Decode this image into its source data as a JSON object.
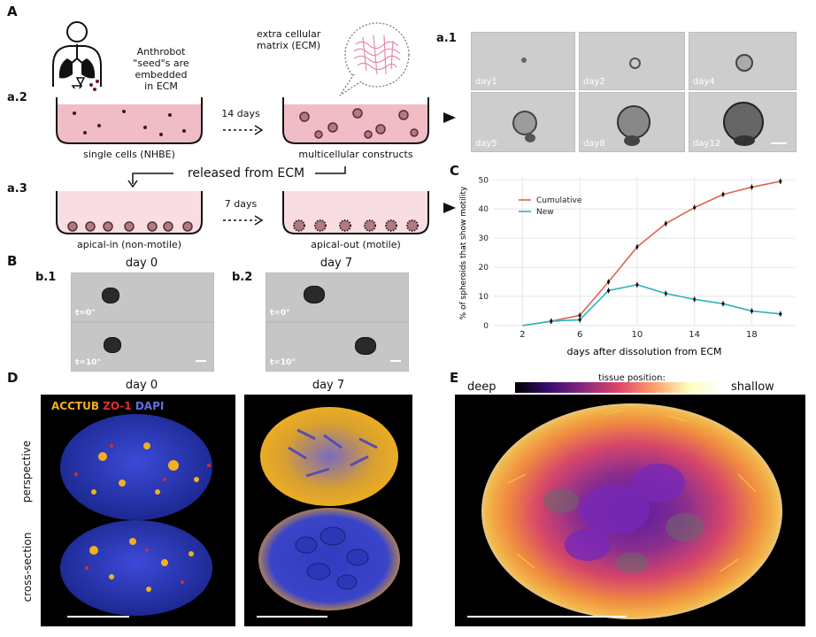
{
  "panels": {
    "A": "A",
    "B": "B",
    "C": "C",
    "D": "D",
    "E": "E",
    "a1": "a.1",
    "a2": "a.2",
    "a3": "a.3",
    "b1": "b.1",
    "b2": "b.2"
  },
  "panelA": {
    "seed_text_1": "Anthrobot",
    "seed_text_2": "\"seed\"s are",
    "seed_text_3": "embedded",
    "seed_text_4": "in ECM",
    "ecm_text_1": "extra cellular",
    "ecm_text_2": "matrix (ECM)",
    "days14": "14 days",
    "days7": "7 days",
    "single_cells": "single cells (NHBE)",
    "multicellular": "multicellular constructs",
    "released": "released from ECM",
    "apical_in": "apical-in (non-motile)",
    "apical_out": "apical-out (motile)",
    "timecourse": [
      "day1",
      "day2",
      "day4",
      "day5",
      "day8",
      "day12"
    ]
  },
  "panelB": {
    "day0": "day 0",
    "day7": "day 7",
    "t0": "t=0\"",
    "t10": "t=10\""
  },
  "chart_data": {
    "type": "line",
    "xlabel": "days after dissolution from ECM",
    "ylabel": "% of spheroids that show motility",
    "xticks": [
      2,
      6,
      10,
      14,
      18
    ],
    "yticks": [
      0,
      10,
      20,
      30,
      40,
      50
    ],
    "xlim": [
      0,
      21
    ],
    "ylim": [
      0,
      51
    ],
    "grid": true,
    "legend_position": "top-left",
    "x": [
      2,
      4,
      6,
      8,
      10,
      12,
      14,
      16,
      18,
      20
    ],
    "series": [
      {
        "name": "Cumulative",
        "color": "#e0604f",
        "values": [
          0,
          1.5,
          3.5,
          15,
          27,
          35,
          40.5,
          45,
          47.5,
          49.5
        ]
      },
      {
        "name": "New",
        "color": "#2bb3bd",
        "values": [
          0,
          1.5,
          2,
          12,
          14,
          11,
          9,
          7.5,
          5,
          4
        ]
      }
    ]
  },
  "panelD": {
    "day0": "day 0",
    "day7": "day 7",
    "stain_acctub": "ACCTUB",
    "stain_zo1": "ZO-1",
    "stain_dapi": "DAPI",
    "row_perspective": "perspective",
    "row_cross": "cross-section",
    "colors": {
      "acctub": "#f0b020",
      "zo1": "#e03030",
      "dapi": "#4a5bd8"
    }
  },
  "panelE": {
    "colorbar_title": "tissue position:",
    "deep": "deep",
    "shallow": "shallow"
  }
}
